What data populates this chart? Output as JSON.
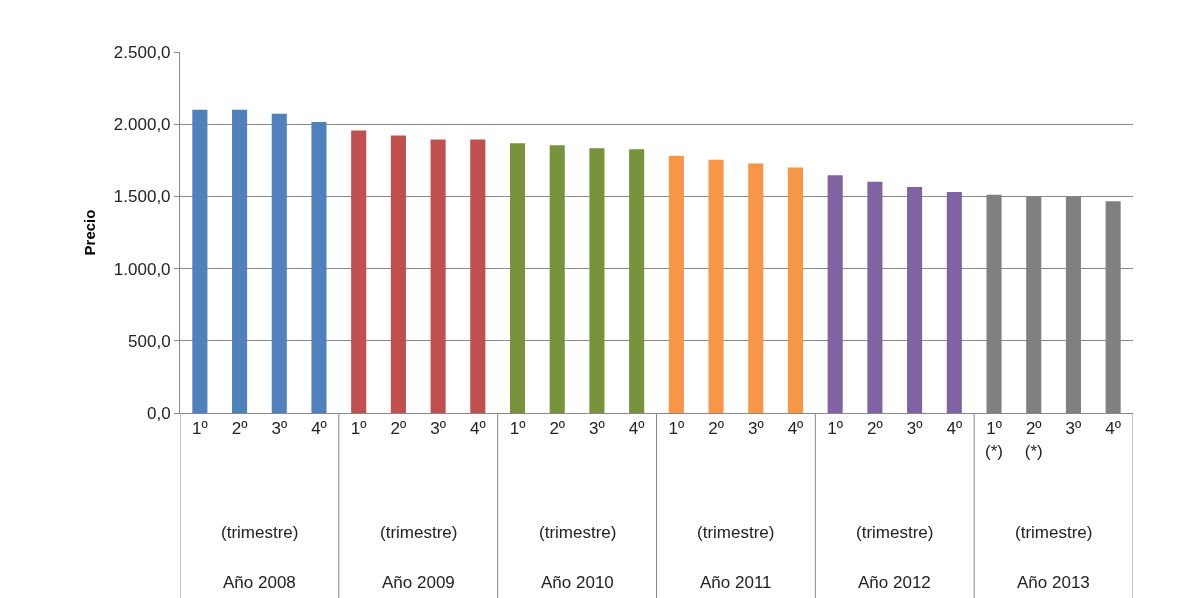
{
  "chart_data": {
    "type": "bar",
    "ylabel": "Precio",
    "categories": [
      "1º",
      "2º",
      "3º",
      "4º",
      "1º",
      "2º",
      "3º",
      "4º",
      "1º",
      "2º",
      "3º",
      "4º",
      "1º",
      "2º",
      "3º",
      "4º",
      "1º",
      "2º",
      "3º",
      "4º",
      "1º\n(*)",
      "2º\n(*)",
      "3º",
      "4º"
    ],
    "values": [
      2100,
      2100,
      2072,
      2016,
      1956,
      1922,
      1894,
      1894,
      1868,
      1854,
      1833,
      1826,
      1781,
      1753,
      1728,
      1701,
      1646,
      1602,
      1565,
      1530,
      1512,
      1500,
      1500,
      1467
    ],
    "colors": [
      "#4f81bd",
      "#4f81bd",
      "#4f81bd",
      "#4f81bd",
      "#c0504d",
      "#c0504d",
      "#c0504d",
      "#c0504d",
      "#77933c",
      "#77933c",
      "#77933c",
      "#77933c",
      "#f79646",
      "#f79646",
      "#f79646",
      "#f79646",
      "#8064a2",
      "#8064a2",
      "#8064a2",
      "#8064a2",
      "#808080",
      "#808080",
      "#808080",
      "#808080"
    ],
    "annotations": [
      "(trimestre)\nAño 2008",
      "(trimestre)\nAño 2009",
      "(trimestre)\nAño 2010",
      "(trimestre)\nAño 2011",
      "(trimestre)\nAño 2012",
      "(trimestre)\nAño 2013"
    ],
    "ylim": [
      0,
      2500
    ],
    "yticks": [
      {
        "value": 0,
        "label": "0,0"
      },
      {
        "value": 500,
        "label": "500,0"
      },
      {
        "value": 1000,
        "label": "1.000,0"
      },
      {
        "value": 1500,
        "label": "1.500,0"
      },
      {
        "value": 2000,
        "label": "2.000,0"
      },
      {
        "value": 2500,
        "label": "2.500,0"
      }
    ],
    "grid": "y",
    "legend": false
  }
}
